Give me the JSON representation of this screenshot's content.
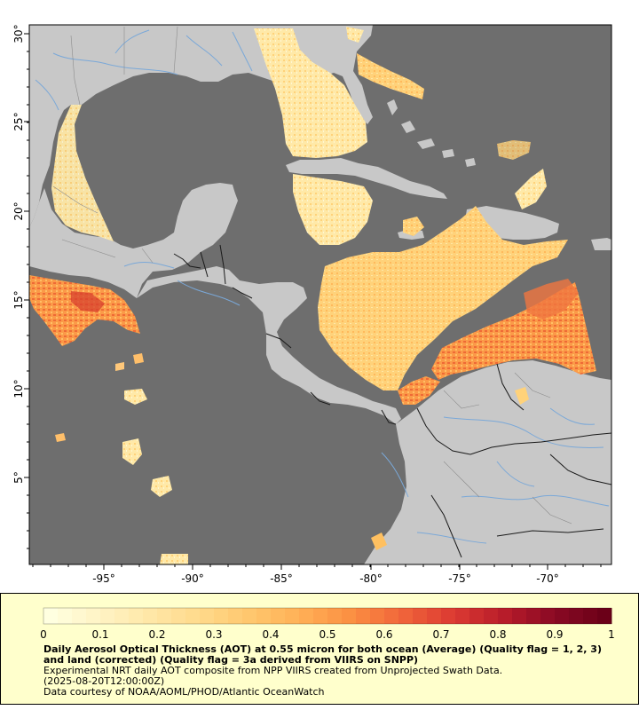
{
  "map": {
    "x_ticks": [
      "-95°",
      "-90°",
      "-85°",
      "-80°",
      "-75°",
      "-70°"
    ],
    "y_ticks": [
      "30°",
      "25°",
      "20°",
      "15°",
      "10°",
      "5°"
    ],
    "colors": {
      "ocean": "#6e6e6e",
      "land": "#c8c8c8",
      "rivers": "#7aa8d8",
      "borders": "#1a1a1a",
      "states": "#8c8c8c"
    }
  },
  "legend": {
    "ticks": [
      "0",
      "0.1",
      "0.2",
      "0.3",
      "0.4",
      "0.5",
      "0.6",
      "0.7",
      "0.8",
      "0.9",
      "1"
    ],
    "range": [
      0,
      1
    ],
    "palette": [
      "#ffffe0",
      "#fff3c4",
      "#ffe7a6",
      "#ffd98a",
      "#ffc66c",
      "#ffaf55",
      "#fb8e42",
      "#f0643a",
      "#dc3a32",
      "#b81c2a",
      "#8a0a24",
      "#6b0018"
    ],
    "title": "Daily Aerosol Optical Thickness (AOT) at 0.55 micron for both ocean (Average) (Quality flag = 1, 2, 3) and land (corrected) (Quality flag = 3a derived from VIIRS on SNPP)",
    "line2": "Experimental NRT daily AOT composite from NPP VIIRS created from Unprojected Swath Data.",
    "line3": "(2025-08-20T12:00:00Z)",
    "line4": "Data courtesy of NOAA/AOML/PHOD/Atlantic OceanWatch"
  }
}
